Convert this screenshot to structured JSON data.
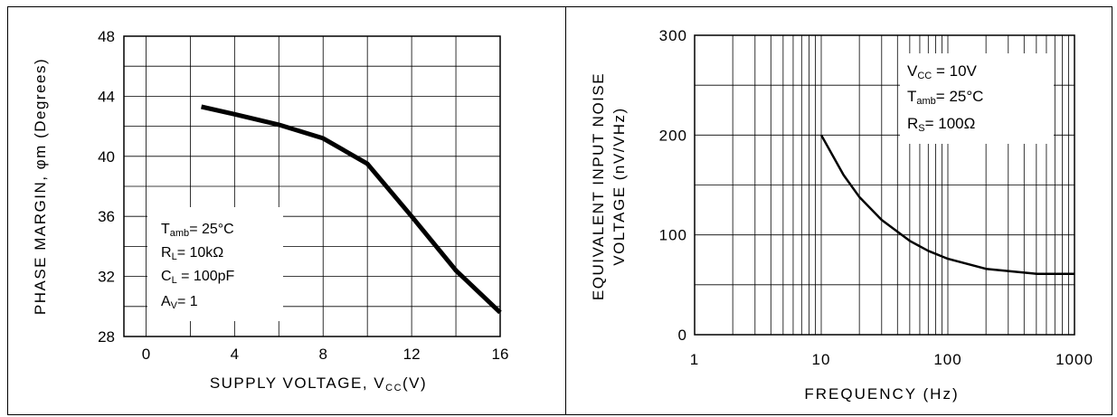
{
  "chart_data": [
    {
      "type": "line",
      "xlabel": "SUPPLY VOLTAGE, V",
      "xlabel_sub": "CC",
      "xlabel_unit": "(V)",
      "ylabel": "PHASE MARGIN, φm (Degrees)",
      "xlim": [
        -1,
        16
      ],
      "ylim": [
        28,
        48
      ],
      "x_ticks": [
        0,
        4,
        8,
        12,
        16
      ],
      "y_ticks": [
        28,
        32,
        36,
        40,
        44,
        48
      ],
      "grid": true,
      "series": [
        {
          "x": [
            2.5,
            4,
            6,
            8,
            10,
            12,
            14,
            16
          ],
          "y": [
            43.3,
            42.8,
            42.1,
            41.2,
            39.5,
            36.0,
            32.4,
            29.6
          ]
        }
      ],
      "annotations": {
        "tamb": {
          "main": "T",
          "sub": "amb",
          "rest": "= 25°C"
        },
        "rl": {
          "main": "R",
          "sub": "L",
          "rest": "= 10kΩ"
        },
        "cl": {
          "main": "C",
          "sub": "L",
          "rest": " = 100pF"
        },
        "av": {
          "main": "A",
          "sub": "V",
          "rest": "= 1"
        }
      }
    },
    {
      "type": "line",
      "xlabel": "FREQUENCY (Hz)",
      "ylabel_line1": "EQUIVALENT INPUT NOISE",
      "ylabel_line2": "VOLTAGE (nV/VHz)",
      "xscale": "log",
      "xlim": [
        1,
        1000
      ],
      "ylim": [
        0,
        300
      ],
      "x_ticks": [
        1,
        10,
        100,
        1000
      ],
      "y_ticks": [
        0,
        100,
        200,
        300
      ],
      "grid": true,
      "series": [
        {
          "x": [
            10,
            15,
            20,
            30,
            50,
            70,
            100,
            200,
            500,
            1000
          ],
          "y": [
            200,
            160,
            138,
            115,
            94,
            84,
            76,
            66,
            61,
            61
          ]
        }
      ],
      "annotations": {
        "vcc": {
          "main": "V",
          "sub": "CC",
          "rest": " = 10V"
        },
        "tamb": {
          "main": "T",
          "sub": "amb",
          "rest": "= 25°C"
        },
        "rs": {
          "main": "R",
          "sub": "S",
          "rest": "= 100Ω"
        }
      }
    }
  ]
}
